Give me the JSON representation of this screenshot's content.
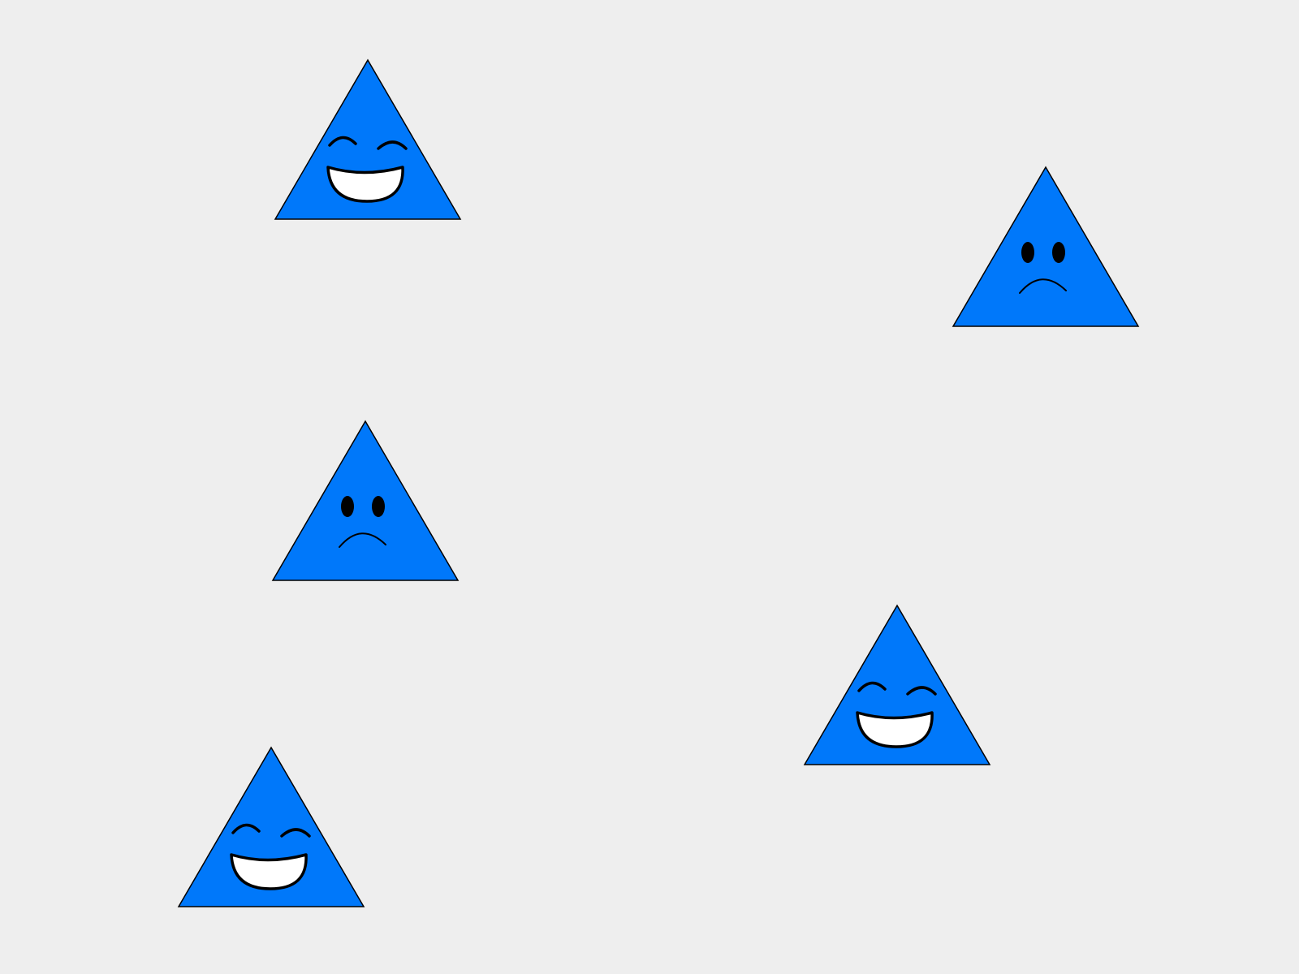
{
  "scene": {
    "background_color": "#eeeeee",
    "shape_fill_color": "#0078fa",
    "outline_color": "#000000",
    "mouth_fill_color": "#ffffff",
    "faces": [
      {
        "id": "face-1",
        "shape": "triangle",
        "expression": "happy"
      },
      {
        "id": "face-2",
        "shape": "triangle",
        "expression": "sad"
      },
      {
        "id": "face-3",
        "shape": "triangle",
        "expression": "sad"
      },
      {
        "id": "face-4",
        "shape": "triangle",
        "expression": "happy"
      },
      {
        "id": "face-5",
        "shape": "triangle",
        "expression": "happy"
      }
    ]
  }
}
